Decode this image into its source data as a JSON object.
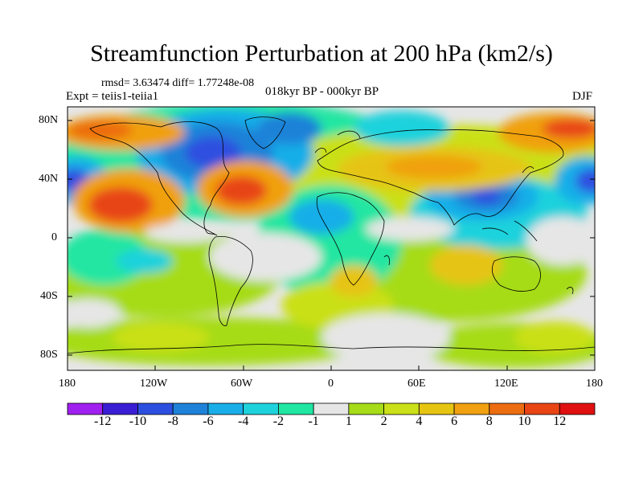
{
  "header": {
    "title": "Streamfunction Perturbation at 200 hPa (km2/s)",
    "stats": "rmsd= 3.63474  diff= 1.77248e-08",
    "experiment": "Expt = teiis1-teiia1",
    "period": "018kyr BP - 000kyr BP",
    "season": "DJF"
  },
  "map": {
    "lat_labels": [
      "80N",
      "40N",
      "0",
      "40S",
      "80S"
    ],
    "lon_labels": [
      "180",
      "120W",
      "60W",
      "0",
      "60E",
      "120E",
      "180"
    ]
  },
  "colorbar": {
    "labels": [
      "-12",
      "-10",
      "-8",
      "-6",
      "-4",
      "-2",
      "-1",
      "1",
      "2",
      "4",
      "6",
      "8",
      "10",
      "12"
    ],
    "colors": [
      "#a020f0",
      "#3a1ed4",
      "#2d4fe0",
      "#1e82d8",
      "#19aee8",
      "#1ed2dc",
      "#20e6a2",
      "#e6e6e6",
      "#a6dc18",
      "#cae018",
      "#e6c412",
      "#f0a010",
      "#ec6c10",
      "#e84414",
      "#e01010"
    ]
  }
}
